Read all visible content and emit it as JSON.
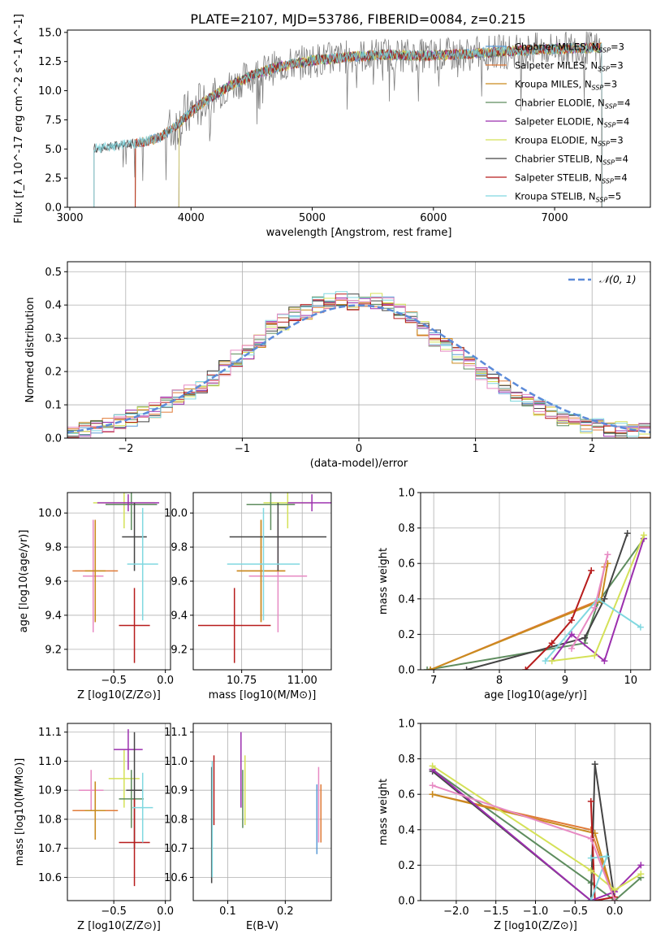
{
  "figure": {
    "title": "PLATE=2107, MJD=53786, FIBERID=0084, z=0.215"
  },
  "chart_data": [
    {
      "id": "spectrum",
      "type": "line",
      "xlabel": "wavelength [Angstrom, rest frame]",
      "ylabel": "Flux [f_λ 10^-17 erg cm^-2 s^-1 A^-1]",
      "xlim": [
        2980,
        7790
      ],
      "ylim": [
        0,
        15.2
      ],
      "xticks": [
        3000,
        4000,
        5000,
        6000,
        7000
      ],
      "yticks": [
        0.0,
        2.5,
        5.0,
        7.5,
        10.0,
        12.5,
        15.0
      ],
      "grid": false,
      "legend_position": "top-right",
      "data_trend": [
        [
          3200,
          5.0
        ],
        [
          3400,
          5.3
        ],
        [
          3600,
          5.6
        ],
        [
          3750,
          6.0
        ],
        [
          3900,
          7.2
        ],
        [
          4000,
          8.2
        ],
        [
          4100,
          9.0
        ],
        [
          4300,
          10.3
        ],
        [
          4500,
          11.3
        ],
        [
          4700,
          12.0
        ],
        [
          5000,
          12.6
        ],
        [
          5300,
          12.9
        ],
        [
          5600,
          13.1
        ],
        [
          5900,
          13.0
        ],
        [
          6200,
          13.1
        ],
        [
          6500,
          13.3
        ],
        [
          6800,
          13.5
        ],
        [
          7100,
          13.6
        ],
        [
          7390,
          13.7
        ]
      ],
      "data_range": [
        3200,
        7390
      ],
      "series": [
        {
          "name": "Chabrier MILES, N_SSP=3",
          "color": "#5b9bd5",
          "start": 3540
        },
        {
          "name": "Salpeter MILES, N_SSP=3",
          "color": "#e07b39",
          "start": 3540
        },
        {
          "name": "Kroupa MILES, N_SSP=3",
          "color": "#c98b1e",
          "start": 3540
        },
        {
          "name": "Chabrier ELODIE, N_SSP=4",
          "color": "#5e8c5e",
          "start": 3900
        },
        {
          "name": "Salpeter ELODIE, N_SSP=4",
          "color": "#9b2fae",
          "start": 3900
        },
        {
          "name": "Kroupa ELODIE, N_SSP=3",
          "color": "#d4e157",
          "start": 3900
        },
        {
          "name": "Chabrier STELIB, N_SSP=4",
          "color": "#444444",
          "start": 3200
        },
        {
          "name": "Salpeter STELIB, N_SSP=4",
          "color": "#b71c1c",
          "start": 3540
        },
        {
          "name": "Kroupa STELIB, N_SSP=5",
          "color": "#80d8e0",
          "start": 3200
        }
      ]
    },
    {
      "id": "residuals",
      "type": "bar",
      "xlabel": "(data-model)/error",
      "ylabel": "Normed distribution",
      "xlim": [
        -2.5,
        2.5
      ],
      "ylim": [
        0,
        0.53
      ],
      "xticks": [
        -2,
        -1,
        0,
        1,
        2
      ],
      "yticks": [
        0.0,
        0.1,
        0.2,
        0.3,
        0.4,
        0.5
      ],
      "grid": true,
      "legend": "𝒩(0, 1)",
      "legend_position": "top-right",
      "bin_width": 0.1,
      "histogram_approx": [
        0.02,
        0.025,
        0.03,
        0.04,
        0.05,
        0.06,
        0.07,
        0.085,
        0.1,
        0.12,
        0.14,
        0.16,
        0.18,
        0.21,
        0.24,
        0.26,
        0.29,
        0.33,
        0.35,
        0.37,
        0.38,
        0.4,
        0.41,
        0.42,
        0.41,
        0.42,
        0.41,
        0.4,
        0.38,
        0.36,
        0.33,
        0.3,
        0.28,
        0.25,
        0.22,
        0.2,
        0.17,
        0.15,
        0.13,
        0.11,
        0.09,
        0.075,
        0.06,
        0.05,
        0.04,
        0.035,
        0.03,
        0.025,
        0.02,
        0.02
      ],
      "series_colors": [
        "#5b9bd5",
        "#e07b39",
        "#c98b1e",
        "#5e8c5e",
        "#9b2fae",
        "#d4e157",
        "#444444",
        "#b71c1c",
        "#80d8e0",
        "#e78ac3"
      ]
    },
    {
      "id": "age-vs-Z",
      "type": "scatter",
      "xlabel": "Z [log10(Z/Z⊙)]",
      "ylabel": "age [log10(age/yr)]",
      "xlim": [
        -0.95,
        0.05
      ],
      "ylim": [
        9.08,
        10.12
      ],
      "xticks": [
        -0.5,
        0.0
      ],
      "xtick_labels": [
        "−0.5",
        "0.0"
      ],
      "yticks": [
        9.2,
        9.4,
        9.6,
        9.8,
        10.0
      ],
      "grid": true,
      "points": [
        {
          "color": "#e78ac3",
          "x": -0.7,
          "xerr": 0.1,
          "y": 9.63,
          "yerr": 0.33
        },
        {
          "color": "#e07b39",
          "x": -0.68,
          "xerr": 0.22,
          "y": 9.66,
          "yerr": 0.3
        },
        {
          "color": "#c98b1e",
          "x": -0.68,
          "xerr": 0.1,
          "y": 9.66,
          "yerr": 0.3
        },
        {
          "color": "#d4e157",
          "x": -0.4,
          "xerr": 0.3,
          "y": 10.06,
          "yerr": 0.15
        },
        {
          "color": "#5e8c5e",
          "x": -0.33,
          "xerr": 0.25,
          "y": 10.05,
          "yerr": 0.15
        },
        {
          "color": "#9b2fae",
          "x": -0.36,
          "xerr": 0.3,
          "y": 10.06,
          "yerr": 0.05
        },
        {
          "color": "#444444",
          "x": -0.3,
          "xerr": 0.12,
          "y": 9.86,
          "yerr": 0.2
        },
        {
          "color": "#b71c1c",
          "x": -0.3,
          "xerr": 0.15,
          "y": 9.34,
          "yerr": 0.22
        },
        {
          "color": "#80d8e0",
          "x": -0.22,
          "xerr": 0.15,
          "y": 9.7,
          "yerr": 0.33
        }
      ]
    },
    {
      "id": "age-vs-mass",
      "type": "scatter",
      "xlabel": "mass [log10(M/M⊙)]",
      "ylabel": "",
      "xlim": [
        10.55,
        11.12
      ],
      "ylim": [
        9.08,
        10.12
      ],
      "xticks": [
        10.75,
        11.0
      ],
      "xtick_labels": [
        "10.75",
        "11.00"
      ],
      "yticks": [
        9.2,
        9.4,
        9.6,
        9.8,
        10.0
      ],
      "grid": true,
      "points": [
        {
          "color": "#e78ac3",
          "x": 10.9,
          "xerr": 0.12,
          "y": 9.63,
          "yerr": 0.33
        },
        {
          "color": "#e07b39",
          "x": 10.83,
          "xerr": 0.1,
          "y": 9.66,
          "yerr": 0.3
        },
        {
          "color": "#c98b1e",
          "x": 10.83,
          "xerr": 0.1,
          "y": 9.66,
          "yerr": 0.3
        },
        {
          "color": "#d4e157",
          "x": 10.94,
          "xerr": 0.1,
          "y": 10.06,
          "yerr": 0.15
        },
        {
          "color": "#5e8c5e",
          "x": 10.87,
          "xerr": 0.1,
          "y": 10.05,
          "yerr": 0.15
        },
        {
          "color": "#9b2fae",
          "x": 11.04,
          "xerr": 0.1,
          "y": 10.06,
          "yerr": 0.05
        },
        {
          "color": "#444444",
          "x": 10.9,
          "xerr": 0.2,
          "y": 9.86,
          "yerr": 0.2
        },
        {
          "color": "#b71c1c",
          "x": 10.72,
          "xerr": 0.15,
          "y": 9.34,
          "yerr": 0.22
        },
        {
          "color": "#80d8e0",
          "x": 10.84,
          "xerr": 0.15,
          "y": 9.7,
          "yerr": 0.33
        }
      ]
    },
    {
      "id": "weight-vs-age",
      "type": "line",
      "xlabel": "age [log10(age/yr)]",
      "ylabel": "mass weight",
      "xlim": [
        6.8,
        10.3
      ],
      "ylim": [
        0,
        1.0
      ],
      "xticks": [
        7,
        8,
        9,
        10
      ],
      "yticks": [
        0.0,
        0.2,
        0.4,
        0.6,
        0.8,
        1.0
      ],
      "grid": true,
      "series": [
        {
          "color": "#5e8c5e",
          "points": [
            [
              6.9,
              0.0
            ],
            [
              9.3,
              0.15
            ],
            [
              9.5,
              0.38
            ],
            [
              10.2,
              0.74
            ]
          ]
        },
        {
          "color": "#e07b39",
          "points": [
            [
              6.95,
              0.0
            ],
            [
              9.5,
              0.39
            ],
            [
              9.6,
              0.58
            ]
          ]
        },
        {
          "color": "#c98b1e",
          "points": [
            [
              6.95,
              0.0
            ],
            [
              9.55,
              0.39
            ],
            [
              9.65,
              0.6
            ]
          ]
        },
        {
          "color": "#444444",
          "points": [
            [
              7.5,
              0.0
            ],
            [
              9.3,
              0.18
            ],
            [
              9.6,
              0.4
            ],
            [
              9.95,
              0.77
            ]
          ]
        },
        {
          "color": "#b71c1c",
          "points": [
            [
              8.4,
              0.0
            ],
            [
              8.8,
              0.15
            ],
            [
              9.1,
              0.28
            ],
            [
              9.4,
              0.56
            ]
          ]
        },
        {
          "color": "#9b2fae",
          "points": [
            [
              8.8,
              0.05
            ],
            [
              9.1,
              0.2
            ],
            [
              9.6,
              0.05
            ],
            [
              10.2,
              0.74
            ]
          ]
        },
        {
          "color": "#d4e157",
          "points": [
            [
              8.8,
              0.05
            ],
            [
              9.45,
              0.08
            ],
            [
              10.2,
              0.76
            ]
          ]
        },
        {
          "color": "#80d8e0",
          "points": [
            [
              8.7,
              0.05
            ],
            [
              9.5,
              0.4
            ],
            [
              10.15,
              0.24
            ]
          ]
        },
        {
          "color": "#e78ac3",
          "points": [
            [
              9.1,
              0.12
            ],
            [
              9.45,
              0.35
            ],
            [
              9.65,
              0.65
            ]
          ]
        }
      ]
    },
    {
      "id": "mass-vs-Z",
      "type": "scatter",
      "xlabel": "Z [log10(Z/Z⊙)]",
      "ylabel": "mass [log10(M/M⊙)]",
      "xlim": [
        -0.95,
        0.05
      ],
      "ylim": [
        10.52,
        11.13
      ],
      "xticks": [
        -0.5,
        0.0
      ],
      "xtick_labels": [
        "−0.5",
        "0.0"
      ],
      "yticks": [
        10.6,
        10.7,
        10.8,
        10.9,
        11.0,
        11.1
      ],
      "grid": true,
      "points": [
        {
          "color": "#e78ac3",
          "x": -0.72,
          "xerr": 0.12,
          "y": 10.9,
          "yerr": 0.07
        },
        {
          "color": "#e07b39",
          "x": -0.68,
          "xerr": 0.22,
          "y": 10.83,
          "yerr": 0.1
        },
        {
          "color": "#c98b1e",
          "x": -0.68,
          "xerr": 0.1,
          "y": 10.83,
          "yerr": 0.1
        },
        {
          "color": "#d4e157",
          "x": -0.4,
          "xerr": 0.15,
          "y": 10.94,
          "yerr": 0.1
        },
        {
          "color": "#5e8c5e",
          "x": -0.33,
          "xerr": 0.12,
          "y": 10.87,
          "yerr": 0.1
        },
        {
          "color": "#9b2fae",
          "x": -0.36,
          "xerr": 0.14,
          "y": 11.04,
          "yerr": 0.07
        },
        {
          "color": "#444444",
          "x": -0.3,
          "xerr": 0.08,
          "y": 10.9,
          "yerr": 0.2
        },
        {
          "color": "#b71c1c",
          "x": -0.3,
          "xerr": 0.15,
          "y": 10.72,
          "yerr": 0.15
        },
        {
          "color": "#80d8e0",
          "x": -0.22,
          "xerr": 0.1,
          "y": 10.84,
          "yerr": 0.12
        }
      ]
    },
    {
      "id": "mass-vs-EBV",
      "type": "scatter",
      "xlabel": "E(B-V)",
      "ylabel": "",
      "xlim": [
        0.04,
        0.28
      ],
      "ylim": [
        10.52,
        11.13
      ],
      "xticks": [
        0.1,
        0.2
      ],
      "yticks": [
        10.6,
        10.7,
        10.8,
        10.9,
        11.0,
        11.1
      ],
      "grid": true,
      "points": [
        {
          "color": "#444444",
          "x": 0.072,
          "y": 10.78,
          "yerr": 0.2
        },
        {
          "color": "#80d8e0",
          "x": 0.073,
          "y": 10.8,
          "yerr": 0.2
        },
        {
          "color": "#b71c1c",
          "x": 0.076,
          "y": 10.9,
          "yerr": 0.12
        },
        {
          "color": "#9b2fae",
          "x": 0.123,
          "y": 10.97,
          "yerr": 0.13
        },
        {
          "color": "#5e8c5e",
          "x": 0.126,
          "y": 10.87,
          "yerr": 0.1
        },
        {
          "color": "#d4e157",
          "x": 0.13,
          "y": 10.9,
          "yerr": 0.12
        },
        {
          "color": "#e78ac3",
          "x": 0.258,
          "y": 10.85,
          "yerr": 0.13
        },
        {
          "color": "#5b9bd5",
          "x": 0.255,
          "y": 10.8,
          "yerr": 0.12
        },
        {
          "color": "#e07b39",
          "x": 0.262,
          "y": 10.82,
          "yerr": 0.1
        }
      ]
    },
    {
      "id": "weight-vs-Z",
      "type": "line",
      "xlabel": "Z [log10(Z/Z⊙)]",
      "ylabel": "mass weight",
      "xlim": [
        -2.45,
        0.45
      ],
      "ylim": [
        0,
        1.0
      ],
      "xticks": [
        -2.0,
        -1.5,
        -1.0,
        -0.5,
        0.0
      ],
      "xtick_labels": [
        "−2.0",
        "−1.5",
        "−1.0",
        "−0.5",
        "0.0"
      ],
      "yticks": [
        0.0,
        0.2,
        0.4,
        0.6,
        0.8,
        1.0
      ],
      "grid": true,
      "series": [
        {
          "color": "#5e8c5e",
          "points": [
            [
              -2.3,
              0.74
            ],
            [
              -0.3,
              0.1
            ],
            [
              0.0,
              0.0
            ],
            [
              0.33,
              0.13
            ]
          ]
        },
        {
          "color": "#e07b39",
          "points": [
            [
              -2.3,
              0.6
            ],
            [
              -0.3,
              0.4
            ],
            [
              0.0,
              0.0
            ]
          ]
        },
        {
          "color": "#c98b1e",
          "points": [
            [
              -2.3,
              0.6
            ],
            [
              -0.25,
              0.38
            ],
            [
              0.0,
              0.0
            ]
          ]
        },
        {
          "color": "#444444",
          "points": [
            [
              -2.3,
              0.73
            ],
            [
              -0.3,
              0.0
            ],
            [
              -0.25,
              0.77
            ],
            [
              0.0,
              0.0
            ]
          ]
        },
        {
          "color": "#b71c1c",
          "points": [
            [
              -0.3,
              0.56
            ],
            [
              -0.25,
              0.0
            ],
            [
              0.0,
              0.02
            ]
          ]
        },
        {
          "color": "#9b2fae",
          "points": [
            [
              -2.3,
              0.74
            ],
            [
              -0.3,
              0.0
            ],
            [
              0.0,
              0.05
            ],
            [
              0.33,
              0.2
            ]
          ]
        },
        {
          "color": "#d4e157",
          "points": [
            [
              -2.3,
              0.76
            ],
            [
              -0.3,
              0.17
            ],
            [
              0.0,
              0.06
            ],
            [
              0.33,
              0.15
            ]
          ]
        },
        {
          "color": "#80d8e0",
          "points": [
            [
              -0.3,
              0.24
            ],
            [
              -0.1,
              0.25
            ],
            [
              -0.3,
              0.0
            ]
          ]
        },
        {
          "color": "#e78ac3",
          "points": [
            [
              -2.3,
              0.65
            ],
            [
              -0.3,
              0.35
            ],
            [
              0.0,
              0.0
            ]
          ]
        }
      ]
    }
  ]
}
